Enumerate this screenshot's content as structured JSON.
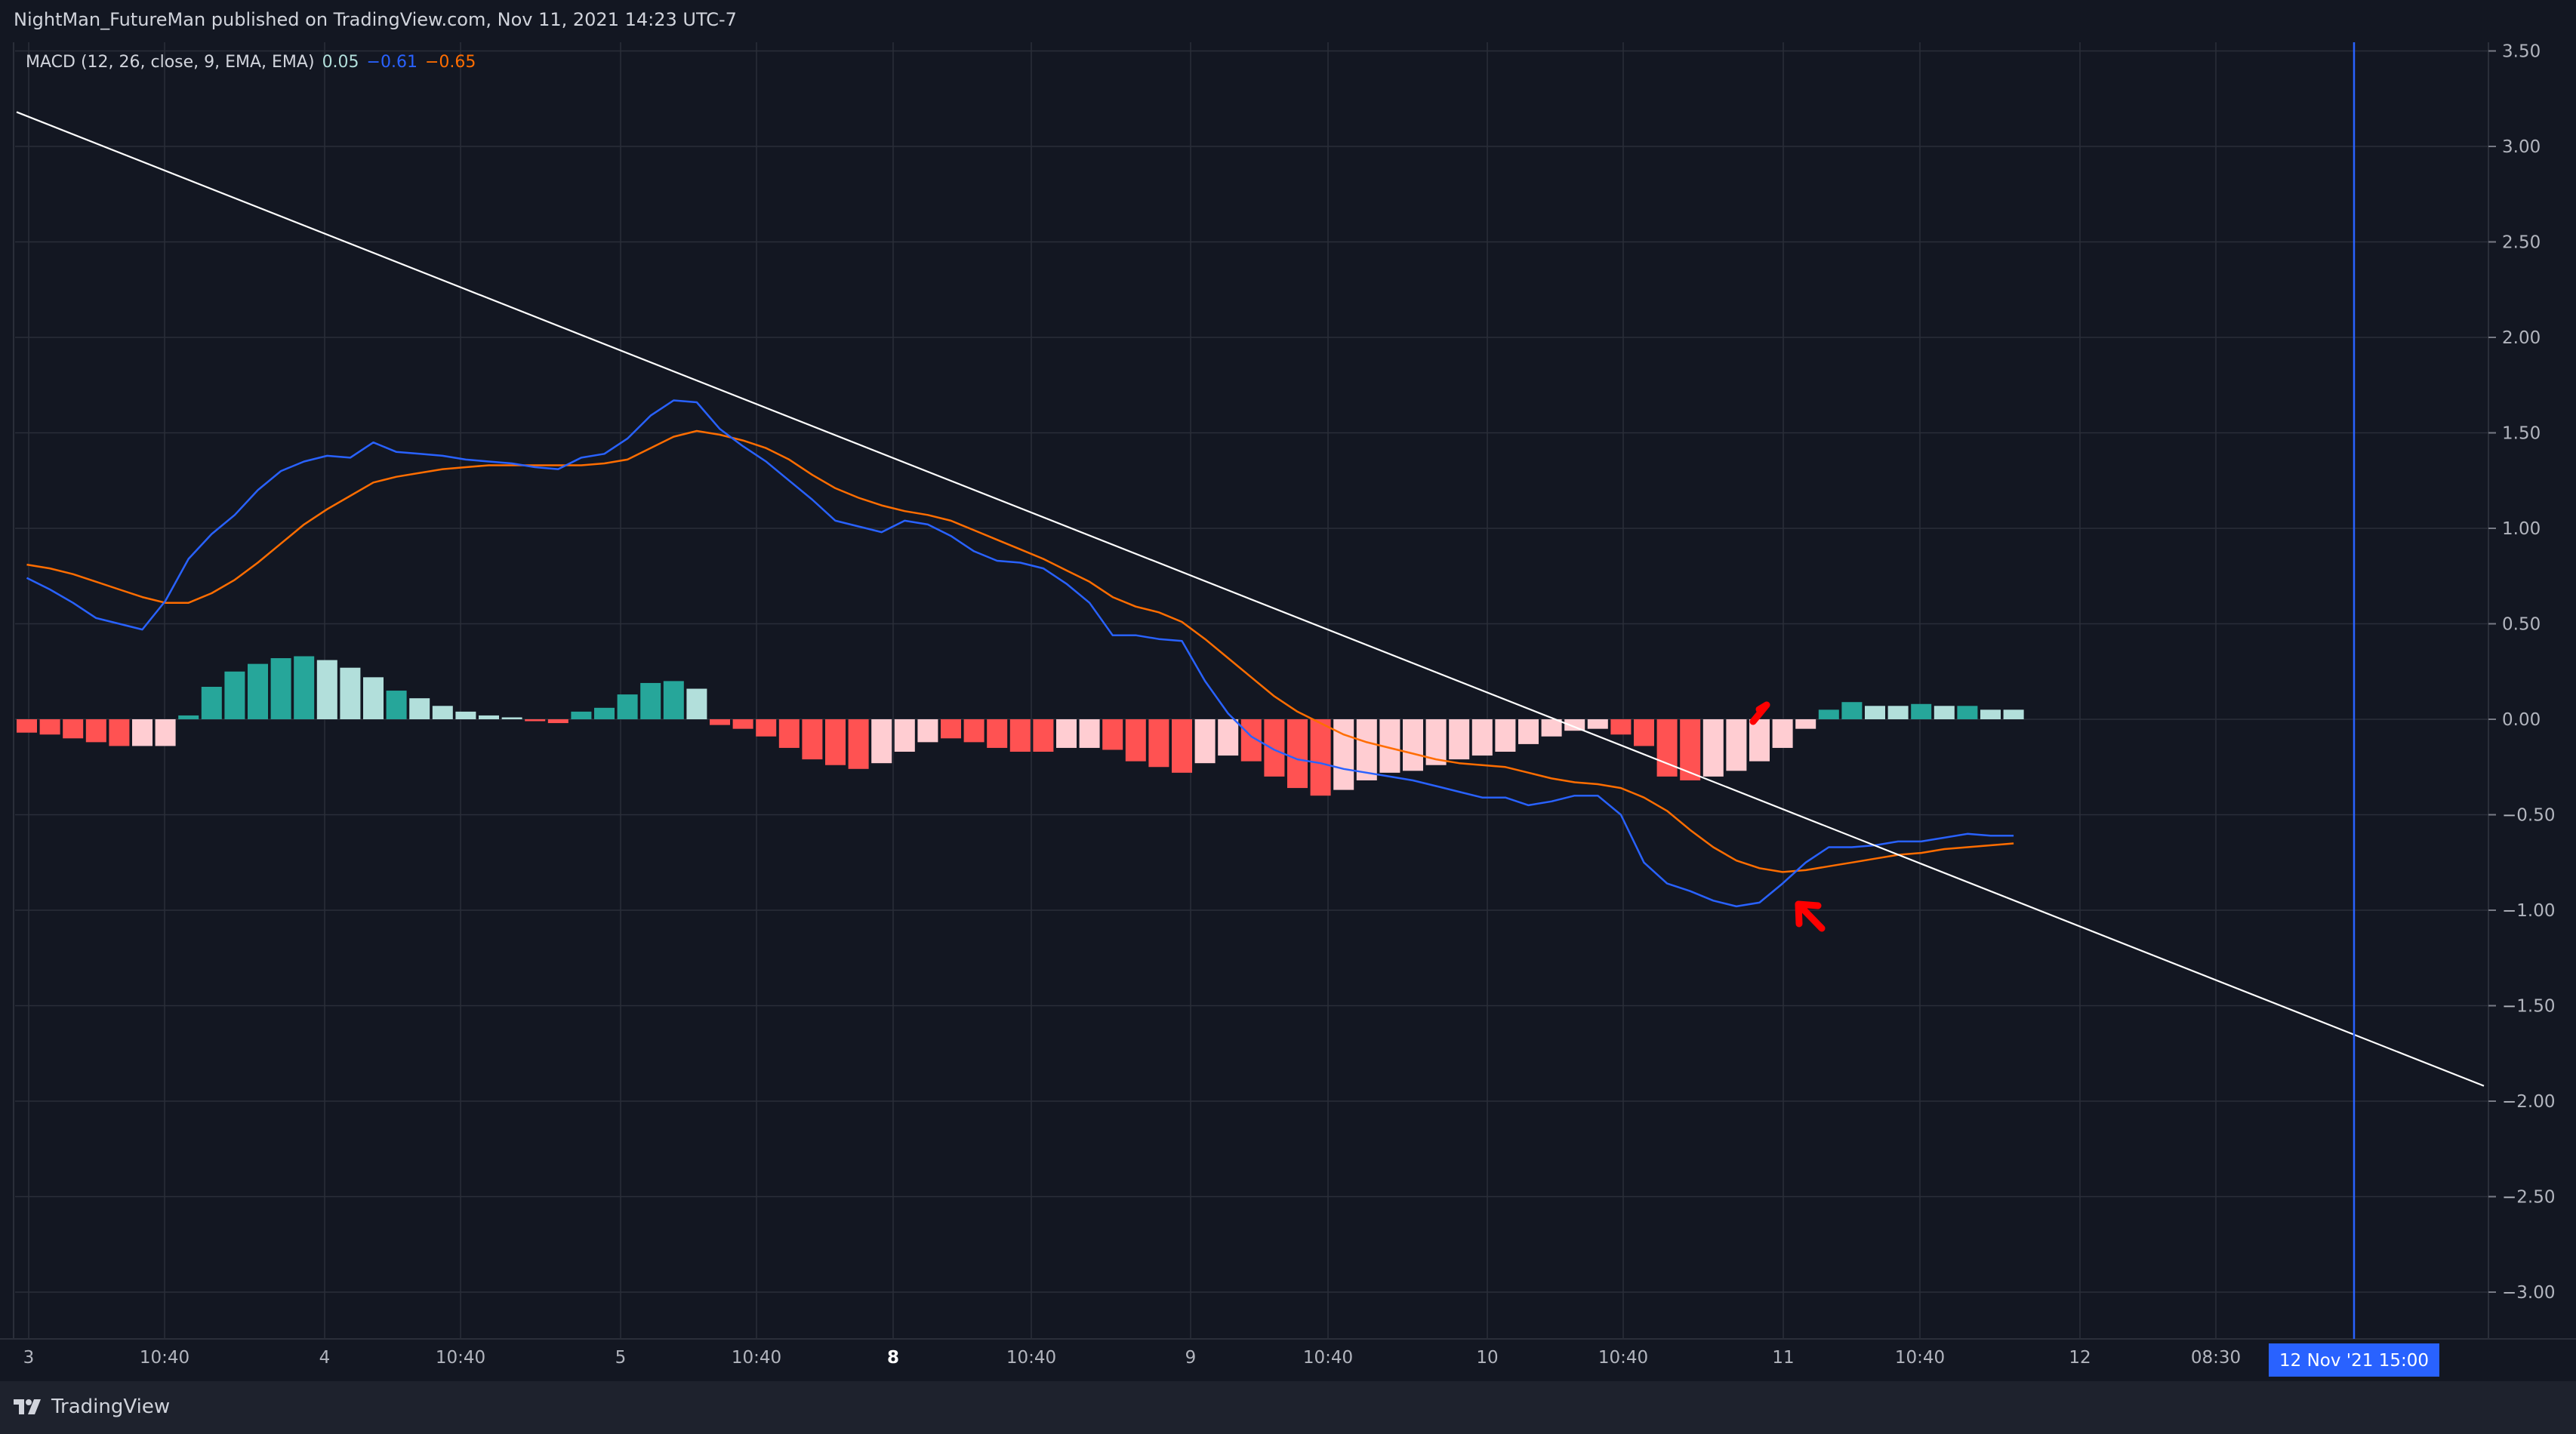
{
  "header": {
    "published": "NightMan_FutureMan published on TradingView.com, Nov 11, 2021 14:23 UTC-7"
  },
  "legend": {
    "indicator": "MACD (12, 26, close, 9, EMA, EMA)",
    "histogram_value": "0.05",
    "macd_value": "−0.61",
    "signal_value": "−0.65"
  },
  "footer": {
    "brand": "TradingView"
  },
  "colors": {
    "background": "#131722",
    "grid": "#2a2e39",
    "macd": "#2962ff",
    "signal": "#ff6d00",
    "hist_up_strong": "#26a69a",
    "hist_up_weak": "#b2dfdb",
    "hist_down_strong": "#ff5252",
    "hist_down_weak": "#ffcdd2",
    "trendline": "#ffffff",
    "arrow": "#ff0000",
    "cursor_line": "#2962ff",
    "cursor_label_bg": "#2962ff"
  },
  "chart_data": {
    "type": "line",
    "ylim": [
      -3.25,
      3.55
    ],
    "y_ticks": [
      "3.50",
      "3.00",
      "2.50",
      "2.00",
      "1.50",
      "1.00",
      "0.50",
      "0.00",
      "−0.50",
      "−1.00",
      "−1.50",
      "−2.00",
      "−2.50",
      "−3.00"
    ],
    "x_ticks": [
      {
        "label": "3",
        "bold": false
      },
      {
        "label": "10:40",
        "bold": false
      },
      {
        "label": "4",
        "bold": false
      },
      {
        "label": "10:40",
        "bold": false
      },
      {
        "label": "5",
        "bold": false
      },
      {
        "label": "10:40",
        "bold": false
      },
      {
        "label": "8",
        "bold": true
      },
      {
        "label": "10:40",
        "bold": false
      },
      {
        "label": "9",
        "bold": false
      },
      {
        "label": "10:40",
        "bold": false
      },
      {
        "label": "10",
        "bold": false
      },
      {
        "label": "10:40",
        "bold": false
      },
      {
        "label": "11",
        "bold": false
      },
      {
        "label": "10:40",
        "bold": false
      },
      {
        "label": "12",
        "bold": false
      },
      {
        "label": "08:30",
        "bold": false
      }
    ],
    "cursor_label": "12 Nov '21   15:00",
    "histogram": [
      -0.07,
      -0.08,
      -0.1,
      -0.12,
      -0.14,
      -0.14,
      -0.14,
      0.02,
      0.17,
      0.25,
      0.29,
      0.32,
      0.33,
      0.31,
      0.27,
      0.22,
      0.15,
      0.11,
      0.07,
      0.04,
      0.02,
      0.01,
      -0.01,
      -0.02,
      0.04,
      0.06,
      0.13,
      0.19,
      0.2,
      0.16,
      -0.03,
      -0.05,
      -0.09,
      -0.15,
      -0.21,
      -0.24,
      -0.26,
      -0.23,
      -0.17,
      -0.12,
      -0.1,
      -0.12,
      -0.15,
      -0.17,
      -0.17,
      -0.15,
      -0.15,
      -0.16,
      -0.22,
      -0.25,
      -0.28,
      -0.23,
      -0.19,
      -0.22,
      -0.3,
      -0.36,
      -0.4,
      -0.37,
      -0.32,
      -0.28,
      -0.27,
      -0.24,
      -0.21,
      -0.19,
      -0.17,
      -0.13,
      -0.09,
      -0.06,
      -0.05,
      -0.08,
      -0.14,
      -0.3,
      -0.32,
      -0.3,
      -0.27,
      -0.22,
      -0.15,
      -0.05,
      0.05,
      0.09,
      0.07,
      0.07,
      0.08,
      0.07,
      0.07,
      0.05,
      0.05
    ],
    "hist_shade": [
      "s",
      "s",
      "s",
      "s",
      "s",
      "w",
      "w",
      "s",
      "s",
      "s",
      "s",
      "s",
      "s",
      "w",
      "w",
      "w",
      "s",
      "w",
      "w",
      "w",
      "w",
      "w",
      "s",
      "s",
      "s",
      "s",
      "s",
      "s",
      "s",
      "w",
      "s",
      "s",
      "s",
      "s",
      "s",
      "s",
      "s",
      "w",
      "w",
      "w",
      "s",
      "s",
      "s",
      "s",
      "s",
      "w",
      "w",
      "s",
      "s",
      "s",
      "s",
      "w",
      "w",
      "s",
      "s",
      "s",
      "s",
      "w",
      "w",
      "w",
      "w",
      "w",
      "w",
      "w",
      "w",
      "w",
      "w",
      "w",
      "w",
      "s",
      "s",
      "s",
      "s",
      "w",
      "w",
      "w",
      "w",
      "w",
      "s",
      "s",
      "w",
      "w",
      "s",
      "w",
      "s",
      "w",
      "w"
    ],
    "series": [
      {
        "legend_value": "−0.61",
        "values": [
          0.74,
          0.68,
          0.61,
          0.53,
          0.5,
          0.47,
          0.62,
          0.84,
          0.97,
          1.07,
          1.2,
          1.3,
          1.35,
          1.38,
          1.37,
          1.45,
          1.4,
          1.39,
          1.38,
          1.36,
          1.35,
          1.34,
          1.32,
          1.31,
          1.37,
          1.39,
          1.47,
          1.59,
          1.67,
          1.66,
          1.52,
          1.43,
          1.35,
          1.25,
          1.15,
          1.04,
          1.01,
          0.98,
          1.04,
          1.02,
          0.96,
          0.88,
          0.83,
          0.82,
          0.79,
          0.71,
          0.61,
          0.44,
          0.44,
          0.42,
          0.41,
          0.2,
          0.03,
          -0.09,
          -0.16,
          -0.21,
          -0.23,
          -0.26,
          -0.28,
          -0.3,
          -0.32,
          -0.35,
          -0.38,
          -0.41,
          -0.41,
          -0.45,
          -0.43,
          -0.4,
          -0.4,
          -0.5,
          -0.75,
          -0.86,
          -0.9,
          -0.95,
          -0.98,
          -0.96,
          -0.86,
          -0.75,
          -0.67,
          -0.67,
          -0.66,
          -0.64,
          -0.64,
          -0.62,
          -0.6,
          -0.61,
          -0.61
        ]
      },
      {
        "legend_value": "−0.65",
        "values": [
          0.81,
          0.79,
          0.76,
          0.72,
          0.68,
          0.64,
          0.61,
          0.61,
          0.66,
          0.73,
          0.82,
          0.92,
          1.02,
          1.1,
          1.17,
          1.24,
          1.27,
          1.29,
          1.31,
          1.32,
          1.33,
          1.33,
          1.33,
          1.33,
          1.33,
          1.34,
          1.36,
          1.42,
          1.48,
          1.51,
          1.49,
          1.46,
          1.42,
          1.36,
          1.28,
          1.21,
          1.16,
          1.12,
          1.09,
          1.07,
          1.04,
          0.99,
          0.94,
          0.89,
          0.84,
          0.78,
          0.72,
          0.64,
          0.59,
          0.56,
          0.51,
          0.42,
          0.32,
          0.22,
          0.12,
          0.04,
          -0.02,
          -0.08,
          -0.12,
          -0.15,
          -0.18,
          -0.21,
          -0.23,
          -0.24,
          -0.25,
          -0.28,
          -0.31,
          -0.33,
          -0.34,
          -0.36,
          -0.41,
          -0.48,
          -0.58,
          -0.67,
          -0.74,
          -0.78,
          -0.8,
          -0.79,
          -0.77,
          -0.75,
          -0.73,
          -0.71,
          -0.7,
          -0.68,
          -0.67,
          -0.66,
          -0.65
        ]
      }
    ],
    "trendline": {
      "from": [
        0,
        3.18
      ],
      "to": [
        105.5,
        -1.92
      ]
    }
  }
}
